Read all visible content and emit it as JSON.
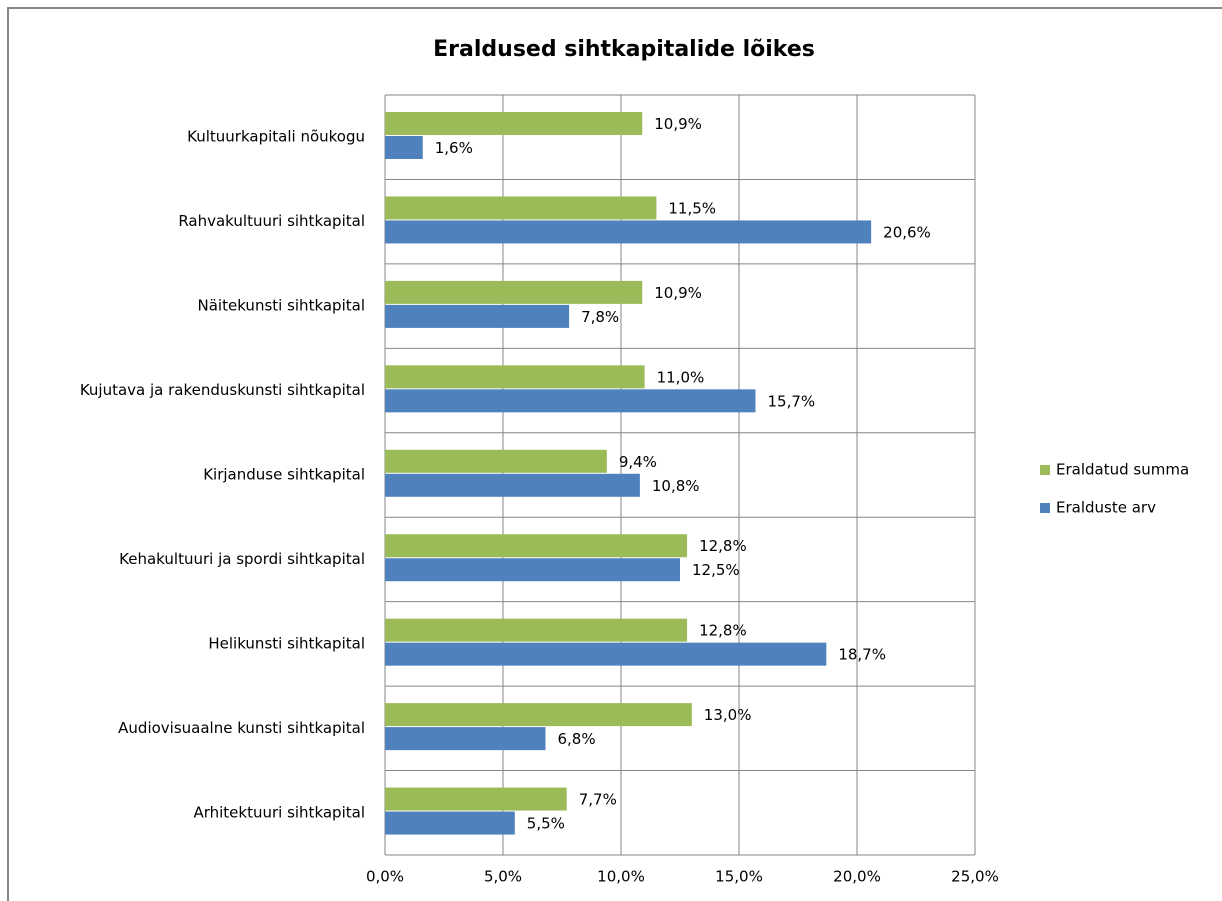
{
  "chart_data": {
    "type": "bar",
    "orientation": "horizontal",
    "title": "Eraldused sihtkapitalide lõikes",
    "categories": [
      "Kultuurkapitali nõukogu",
      "Rahvakultuuri sihtkapital",
      "Näitekunsti sihtkapital",
      "Kujutava ja rakenduskunsti sihtkapital",
      "Kirjanduse sihtkapital",
      "Kehakultuuri ja spordi sihtkapital",
      "Helikunsti sihtkapital",
      "Audiovisuaalne kunsti sihtkapital",
      "Arhitektuuri sihtkapital"
    ],
    "series": [
      {
        "name": "Eraldatud summa",
        "color": "#9bbb59",
        "values": [
          10.9,
          11.5,
          10.9,
          11.0,
          9.4,
          12.8,
          12.8,
          13.0,
          7.7
        ],
        "value_labels": [
          "10,9%",
          "11,5%",
          "10,9%",
          "11,0%",
          "9,4%",
          "12,8%",
          "12,8%",
          "13,0%",
          "7,7%"
        ]
      },
      {
        "name": "Eralduste arv",
        "color": "#4f81bd",
        "values": [
          1.6,
          20.6,
          7.8,
          15.7,
          10.8,
          12.5,
          18.7,
          6.8,
          5.5
        ],
        "value_labels": [
          "1,6%",
          "20,6%",
          "7,8%",
          "15,7%",
          "10,8%",
          "12,5%",
          "18,7%",
          "6,8%",
          "5,5%"
        ]
      }
    ],
    "xlim": [
      0,
      25
    ],
    "xticks": [
      {
        "value": 0,
        "label": "0,0%"
      },
      {
        "value": 5,
        "label": "5,0%"
      },
      {
        "value": 10,
        "label": "10,0%"
      },
      {
        "value": 15,
        "label": "15,0%"
      },
      {
        "value": 20,
        "label": "20,0%"
      },
      {
        "value": 25,
        "label": "25,0%"
      }
    ],
    "grid": true,
    "legend": "right"
  }
}
